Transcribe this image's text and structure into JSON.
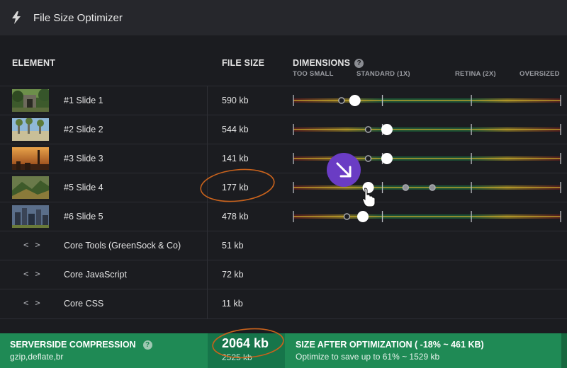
{
  "app": {
    "title": "File Size Optimizer",
    "icon": "lightning-bolt-icon"
  },
  "columns": {
    "element": "ELEMENT",
    "file_size": "FILE SIZE",
    "dimensions": "DIMENSIONS",
    "help_glyph": "?"
  },
  "scale": {
    "too_small": "TOO SMALL",
    "standard": "STANDARD (1X)",
    "retina": "RETINA (2X)",
    "oversized": "OVERSIZED"
  },
  "rows": [
    {
      "name": "#1 Slide 1",
      "size": "590 kb",
      "type": "image",
      "thumb": "garden-photo",
      "value": 0.23,
      "markers": [
        0.18
      ]
    },
    {
      "name": "#2 Slide 2",
      "size": "544 kb",
      "type": "image",
      "thumb": "beach-photo",
      "value": 0.35,
      "markers": [
        0.28
      ]
    },
    {
      "name": "#3 Slide 3",
      "size": "141 kb",
      "type": "image",
      "thumb": "sunset-city-photo",
      "value": 0.35,
      "markers": [
        0.28
      ]
    },
    {
      "name": "#5 Slide 4",
      "size": "177 kb",
      "type": "image",
      "thumb": "forest-hills-photo",
      "value": 0.28,
      "markers": [
        0.42,
        0.52
      ]
    },
    {
      "name": "#6 Slide 5",
      "size": "478 kb",
      "type": "image",
      "thumb": "skyline-photo",
      "value": 0.26,
      "markers": [
        0.2
      ]
    },
    {
      "name": "Core Tools (GreenSock & Co)",
      "size": "51 kb",
      "type": "code",
      "icon": "code-brackets-icon",
      "icon_glyph": "< >"
    },
    {
      "name": "Core JavaScript",
      "size": "72 kb",
      "type": "code",
      "icon": "code-brackets-icon",
      "icon_glyph": "< >"
    },
    {
      "name": "Core CSS",
      "size": "11 kb",
      "type": "code",
      "icon": "code-brackets-icon",
      "icon_glyph": "< >"
    }
  ],
  "footer": {
    "compression_title": "SERVERSIDE COMPRESSION",
    "compression_value": "gzip,deflate,br",
    "total": "2064 kb",
    "total_original": "2525 kb",
    "after_title": "SIZE AFTER OPTIMIZATION ( -18% ~ 461 KB)",
    "after_sub": "Optimize to save up to 61% ~ 1529 kb"
  },
  "colors": {
    "background": "#1b1c20",
    "header": "#26272c",
    "footer": "#1f8a55",
    "accent_purple": "#6a3cc4",
    "annotation": "#c8621c"
  }
}
